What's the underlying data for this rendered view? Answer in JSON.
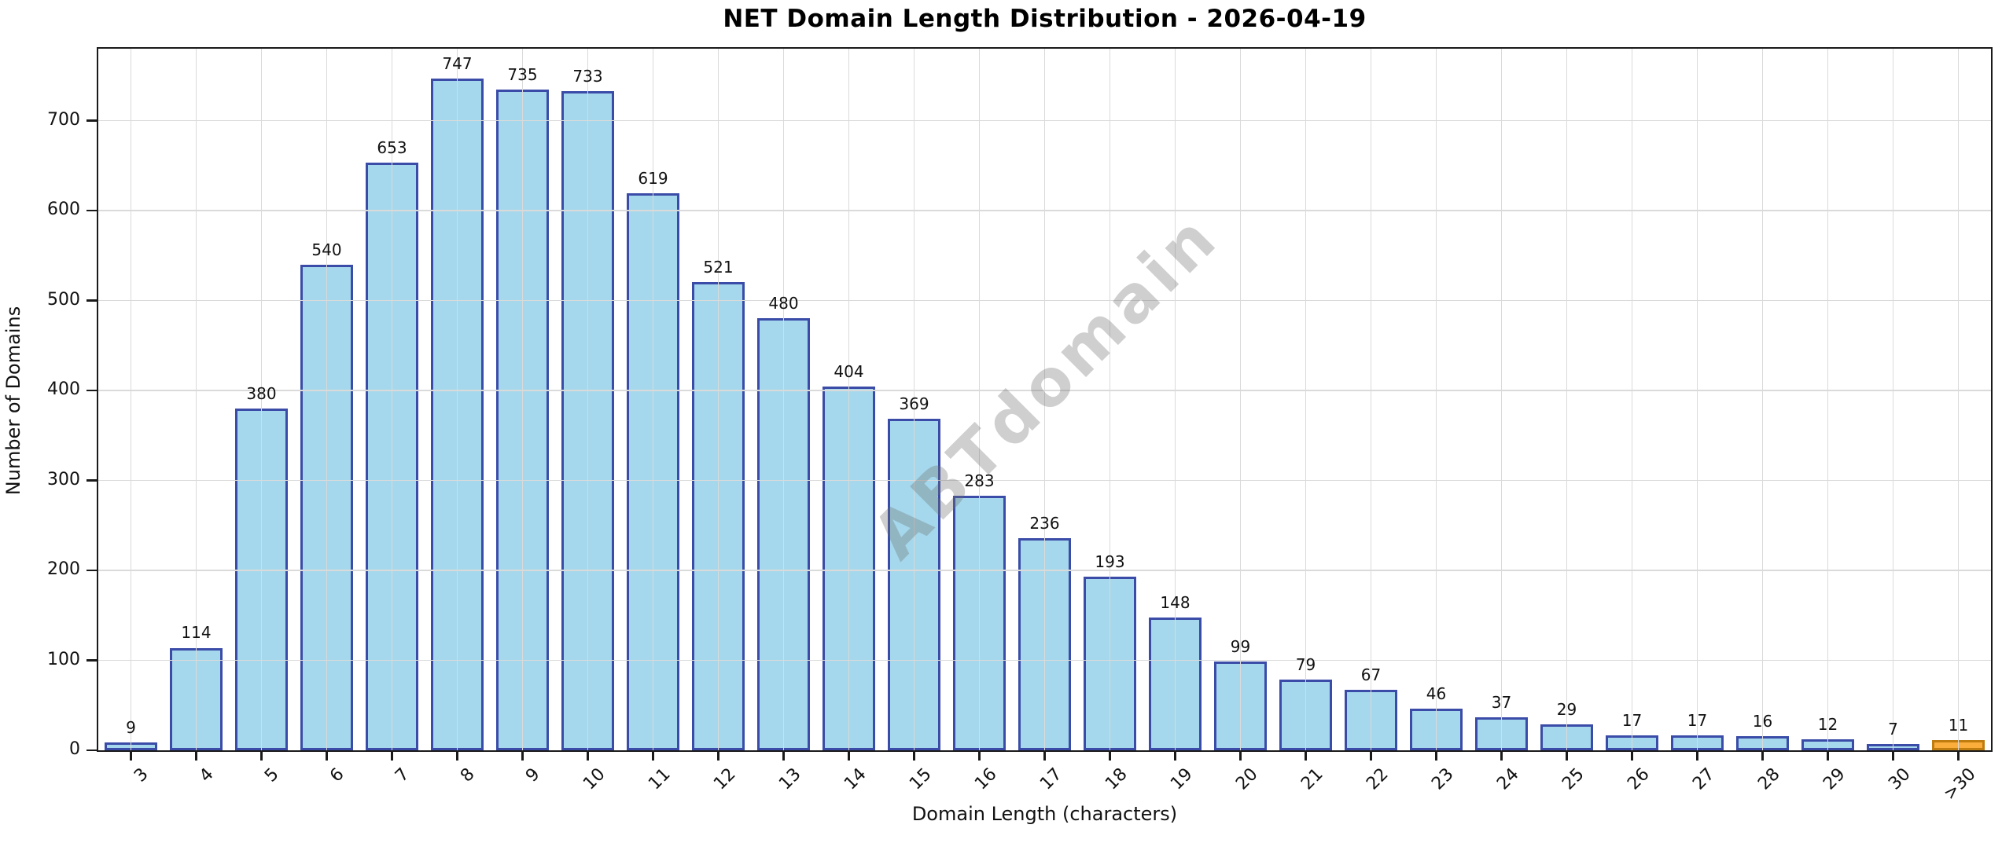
{
  "chart_data": {
    "type": "bar",
    "title": "NET Domain Length Distribution - 2026-04-19",
    "xlabel": "Domain Length (characters)",
    "ylabel": "Number of Domains",
    "watermark": "ABTdomain",
    "categories": [
      "3",
      "4",
      "5",
      "6",
      "7",
      "8",
      "9",
      "10",
      "11",
      "12",
      "13",
      "14",
      "15",
      "16",
      "17",
      "18",
      "19",
      "20",
      "21",
      "22",
      "23",
      "24",
      "25",
      "26",
      "27",
      "28",
      "29",
      "30",
      ">30"
    ],
    "values": [
      9,
      114,
      380,
      540,
      653,
      747,
      735,
      733,
      619,
      521,
      480,
      404,
      369,
      283,
      236,
      193,
      148,
      99,
      79,
      67,
      46,
      37,
      29,
      17,
      17,
      16,
      12,
      7,
      11
    ],
    "ylim": [
      0,
      780
    ],
    "yticks": [
      0,
      100,
      200,
      300,
      400,
      500,
      600,
      700
    ],
    "grid": true,
    "legend": "none",
    "bar_fill": "#a5d8ec",
    "bar_edge": "#3a4ca8",
    "highlight_index": 28,
    "highlight_fill": "#fcae3c",
    "highlight_edge": "#bf7d0f",
    "grid_color": "#dadada",
    "frame_color": "#1a1a1a"
  }
}
